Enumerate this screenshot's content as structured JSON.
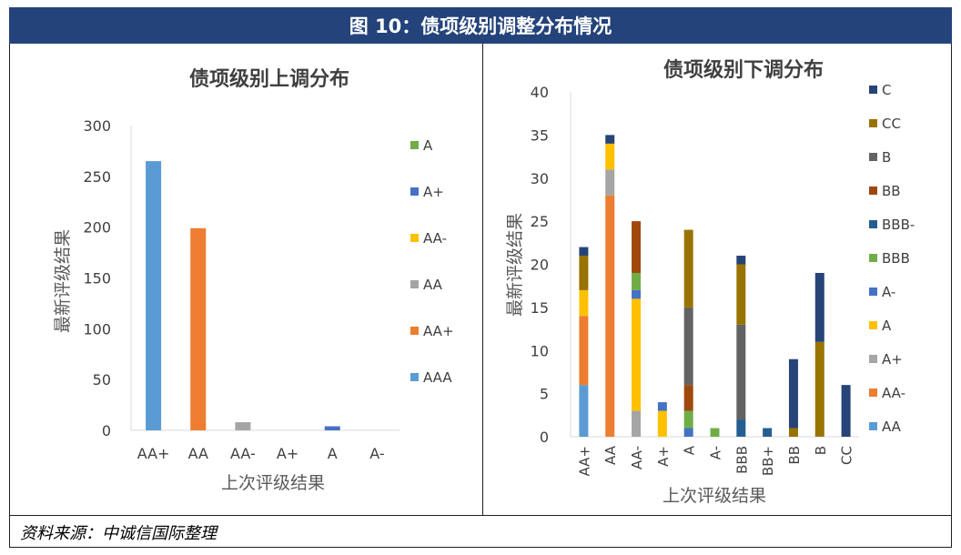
{
  "figure_title": "图 10：债项级别调整分布情况",
  "source": "资料来源：中诚信国际整理",
  "chart_data": [
    {
      "type": "bar",
      "title": "债项级别上调分布",
      "xlabel": "上次评级结果",
      "ylabel": "最新评级结果",
      "ylim": [
        0,
        300
      ],
      "yticks": [
        0,
        50,
        100,
        150,
        200,
        250,
        300
      ],
      "categories": [
        "AA+",
        "AA",
        "AA-",
        "A+",
        "A",
        "A-"
      ],
      "series": [
        {
          "name": "AAA",
          "color": "#5b9bd5",
          "values": [
            265,
            0,
            0,
            0,
            0,
            0
          ]
        },
        {
          "name": "AA+",
          "color": "#ed7d31",
          "values": [
            0,
            199,
            0,
            0,
            0,
            0
          ]
        },
        {
          "name": "AA",
          "color": "#a5a5a5",
          "values": [
            0,
            0,
            8,
            0,
            0,
            0
          ]
        },
        {
          "name": "AA-",
          "color": "#ffc000",
          "values": [
            0,
            0,
            0,
            0,
            0,
            0
          ]
        },
        {
          "name": "A+",
          "color": "#4472c4",
          "values": [
            0,
            0,
            0,
            0,
            4,
            0
          ]
        },
        {
          "name": "A",
          "color": "#70ad47",
          "values": [
            0,
            0,
            0,
            0,
            0,
            0
          ]
        }
      ],
      "legend": [
        "A",
        "A+",
        "AA-",
        "AA",
        "AA+",
        "AAA"
      ]
    },
    {
      "type": "stacked_bar",
      "title": "债项级别下调分布",
      "xlabel": "上次评级结果",
      "ylabel": "最新评级结果",
      "ylim": [
        0,
        40
      ],
      "yticks": [
        0,
        5,
        10,
        15,
        20,
        25,
        30,
        35,
        40
      ],
      "categories": [
        "AA+",
        "AA",
        "AA-",
        "A+",
        "A",
        "A-",
        "BBB",
        "BB+",
        "BB",
        "B",
        "CC"
      ],
      "series": [
        {
          "name": "AA",
          "color": "#5b9bd5",
          "values": [
            6,
            0,
            0,
            0,
            0,
            0,
            0,
            0,
            0,
            0,
            0
          ]
        },
        {
          "name": "AA-",
          "color": "#ed7d31",
          "values": [
            8,
            28,
            0,
            0,
            0,
            0,
            0,
            0,
            0,
            0,
            0
          ]
        },
        {
          "name": "A+",
          "color": "#a5a5a5",
          "values": [
            0,
            3,
            3,
            0,
            0,
            0,
            0,
            0,
            0,
            0,
            0
          ]
        },
        {
          "name": "A",
          "color": "#ffc000",
          "values": [
            3,
            3,
            13,
            3,
            0,
            0,
            0,
            0,
            0,
            0,
            0
          ]
        },
        {
          "name": "A-",
          "color": "#4472c4",
          "values": [
            0,
            0,
            1,
            1,
            1,
            0,
            0,
            0,
            0,
            0,
            0
          ]
        },
        {
          "name": "BBB",
          "color": "#70ad47",
          "values": [
            0,
            0,
            2,
            0,
            2,
            1,
            0,
            0,
            0,
            0,
            0
          ]
        },
        {
          "name": "BBB-",
          "color": "#255e91",
          "values": [
            0,
            0,
            0,
            0,
            0,
            0,
            2,
            1,
            0,
            0,
            0
          ]
        },
        {
          "name": "BB",
          "color": "#9e480e",
          "values": [
            0,
            0,
            6,
            0,
            3,
            0,
            0,
            0,
            0,
            0,
            0
          ]
        },
        {
          "name": "B",
          "color": "#636363",
          "values": [
            0,
            0,
            0,
            0,
            9,
            0,
            11,
            0,
            0,
            0,
            0
          ]
        },
        {
          "name": "CC",
          "color": "#997300",
          "values": [
            4,
            0,
            0,
            0,
            9,
            0,
            7,
            0,
            1,
            11,
            0
          ]
        },
        {
          "name": "C",
          "color": "#264478",
          "values": [
            1,
            1,
            0,
            0,
            0,
            0,
            1,
            0,
            8,
            8,
            6
          ]
        }
      ],
      "legend": [
        "C",
        "CC",
        "B",
        "BB",
        "BBB-",
        "BBB",
        "A-",
        "A",
        "A+",
        "AA-",
        "AA"
      ]
    }
  ]
}
